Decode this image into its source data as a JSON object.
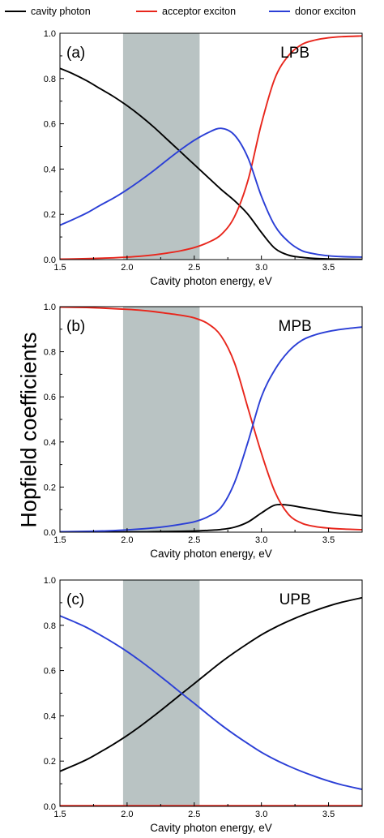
{
  "legend": [
    {
      "label": "cavity photon",
      "color": "#000000"
    },
    {
      "label": "acceptor exciton",
      "color": "#e8261c"
    },
    {
      "label": "donor exciton",
      "color": "#2b3fd6"
    }
  ],
  "ylabel": "Hopfield coefficients",
  "chart_data": [
    {
      "type": "line",
      "panel_tag": "(a)",
      "title": "LPB",
      "xlabel": "Cavity photon energy, eV",
      "ylabel": "",
      "xlim": [
        1.5,
        3.75
      ],
      "ylim": [
        0,
        1.0
      ],
      "xticks": [
        1.5,
        2.0,
        2.5,
        3.0,
        3.5
      ],
      "xtick_labels": [
        "1.5",
        "2.0",
        "2.5",
        "3.0",
        "3.5"
      ],
      "yticks": [
        0.0,
        0.2,
        0.4,
        0.6,
        0.8,
        1.0
      ],
      "ytick_labels": [
        "0.0",
        "0.2",
        "0.4",
        "0.6",
        "0.8",
        "1.0"
      ],
      "shaded_band": [
        1.97,
        2.54
      ],
      "x": [
        1.5,
        1.6,
        1.7,
        1.8,
        1.9,
        2.0,
        2.1,
        2.2,
        2.3,
        2.4,
        2.5,
        2.6,
        2.7,
        2.8,
        2.9,
        3.0,
        3.1,
        3.2,
        3.3,
        3.4,
        3.5,
        3.6,
        3.75
      ],
      "series": [
        {
          "name": "cavity photon",
          "color": "#000000",
          "values": [
            0.845,
            0.82,
            0.79,
            0.755,
            0.72,
            0.68,
            0.635,
            0.585,
            0.53,
            0.475,
            0.42,
            0.365,
            0.31,
            0.26,
            0.2,
            0.12,
            0.05,
            0.02,
            0.01,
            0.005,
            0.003,
            0.002,
            0.001
          ]
        },
        {
          "name": "acceptor exciton",
          "color": "#e8261c",
          "values": [
            0.002,
            0.003,
            0.004,
            0.006,
            0.008,
            0.011,
            0.015,
            0.021,
            0.029,
            0.039,
            0.053,
            0.075,
            0.11,
            0.19,
            0.35,
            0.6,
            0.8,
            0.9,
            0.95,
            0.97,
            0.98,
            0.985,
            0.988
          ]
        },
        {
          "name": "donor exciton",
          "color": "#2b3fd6",
          "values": [
            0.152,
            0.178,
            0.206,
            0.24,
            0.272,
            0.309,
            0.35,
            0.394,
            0.441,
            0.486,
            0.527,
            0.56,
            0.58,
            0.55,
            0.45,
            0.28,
            0.15,
            0.08,
            0.04,
            0.025,
            0.017,
            0.013,
            0.011
          ]
        }
      ]
    },
    {
      "type": "line",
      "panel_tag": "(b)",
      "title": "MPB",
      "xlabel": "Cavity photon energy, eV",
      "ylabel": "",
      "xlim": [
        1.5,
        3.75
      ],
      "ylim": [
        0,
        1.0
      ],
      "xticks": [
        1.5,
        2.0,
        2.5,
        3.0,
        3.5
      ],
      "xtick_labels": [
        "1.5",
        "2.0",
        "2.5",
        "3.0",
        "3.5"
      ],
      "yticks": [
        0.0,
        0.2,
        0.4,
        0.6,
        0.8,
        1.0
      ],
      "ytick_labels": [
        "0.0",
        "0.2",
        "0.4",
        "0.6",
        "0.8",
        "1.0"
      ],
      "shaded_band": [
        1.97,
        2.54
      ],
      "x": [
        1.5,
        1.6,
        1.7,
        1.8,
        1.9,
        2.0,
        2.1,
        2.2,
        2.3,
        2.4,
        2.5,
        2.6,
        2.7,
        2.8,
        2.9,
        3.0,
        3.1,
        3.2,
        3.3,
        3.4,
        3.5,
        3.6,
        3.75
      ],
      "series": [
        {
          "name": "cavity photon",
          "color": "#000000",
          "values": [
            0.0,
            0.0,
            0.0,
            0.0,
            0.001,
            0.001,
            0.001,
            0.002,
            0.003,
            0.004,
            0.005,
            0.008,
            0.012,
            0.022,
            0.045,
            0.085,
            0.12,
            0.12,
            0.11,
            0.1,
            0.09,
            0.082,
            0.072
          ]
        },
        {
          "name": "acceptor exciton",
          "color": "#e8261c",
          "values": [
            0.998,
            0.997,
            0.996,
            0.994,
            0.991,
            0.988,
            0.984,
            0.978,
            0.97,
            0.962,
            0.95,
            0.925,
            0.87,
            0.75,
            0.55,
            0.35,
            0.18,
            0.08,
            0.04,
            0.025,
            0.018,
            0.014,
            0.011
          ]
        },
        {
          "name": "donor exciton",
          "color": "#2b3fd6",
          "values": [
            0.002,
            0.003,
            0.004,
            0.005,
            0.007,
            0.01,
            0.014,
            0.019,
            0.026,
            0.035,
            0.046,
            0.068,
            0.11,
            0.22,
            0.4,
            0.6,
            0.72,
            0.8,
            0.85,
            0.875,
            0.89,
            0.9,
            0.91
          ]
        }
      ]
    },
    {
      "type": "line",
      "panel_tag": "(c)",
      "title": "UPB",
      "xlabel": "Cavity photon energy, eV",
      "ylabel": "",
      "xlim": [
        1.5,
        3.75
      ],
      "ylim": [
        0,
        1.0
      ],
      "xticks": [
        1.5,
        2.0,
        2.5,
        3.0,
        3.5
      ],
      "xtick_labels": [
        "1.5",
        "2.0",
        "2.5",
        "3.0",
        "3.5"
      ],
      "yticks": [
        0.0,
        0.2,
        0.4,
        0.6,
        0.8,
        1.0
      ],
      "ytick_labels": [
        "0.0",
        "0.2",
        "0.4",
        "0.6",
        "0.8",
        "1.0"
      ],
      "shaded_band": [
        1.97,
        2.54
      ],
      "x": [
        1.5,
        1.6,
        1.7,
        1.8,
        1.9,
        2.0,
        2.1,
        2.2,
        2.3,
        2.4,
        2.5,
        2.6,
        2.7,
        2.8,
        2.9,
        3.0,
        3.1,
        3.2,
        3.3,
        3.4,
        3.5,
        3.6,
        3.75
      ],
      "series": [
        {
          "name": "cavity photon",
          "color": "#000000",
          "values": [
            0.155,
            0.18,
            0.207,
            0.24,
            0.275,
            0.313,
            0.355,
            0.4,
            0.447,
            0.495,
            0.542,
            0.59,
            0.637,
            0.68,
            0.72,
            0.758,
            0.79,
            0.818,
            0.843,
            0.865,
            0.885,
            0.902,
            0.922
          ]
        },
        {
          "name": "acceptor exciton",
          "color": "#e8261c",
          "values": [
            0.003,
            0.003,
            0.003,
            0.003,
            0.003,
            0.003,
            0.003,
            0.003,
            0.003,
            0.003,
            0.003,
            0.003,
            0.003,
            0.003,
            0.003,
            0.003,
            0.003,
            0.003,
            0.003,
            0.003,
            0.003,
            0.003,
            0.003
          ]
        },
        {
          "name": "donor exciton",
          "color": "#2b3fd6",
          "values": [
            0.842,
            0.817,
            0.79,
            0.757,
            0.722,
            0.684,
            0.642,
            0.597,
            0.55,
            0.502,
            0.455,
            0.407,
            0.36,
            0.317,
            0.277,
            0.239,
            0.207,
            0.179,
            0.154,
            0.132,
            0.112,
            0.095,
            0.075
          ]
        }
      ]
    }
  ]
}
